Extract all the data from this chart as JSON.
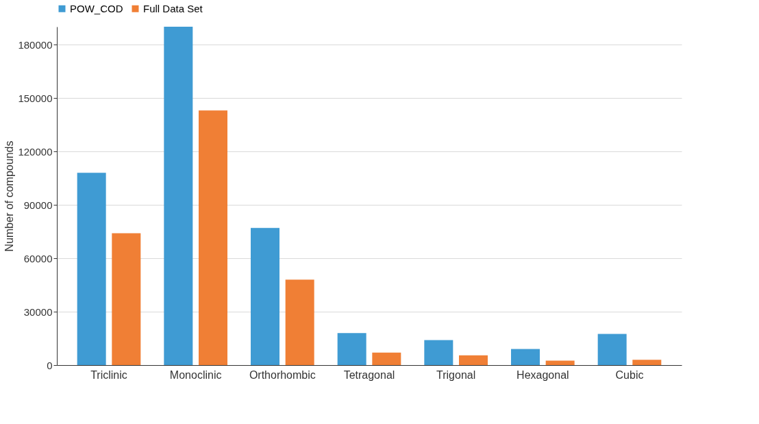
{
  "chart_data": {
    "type": "bar",
    "ylabel": "Number of compounds",
    "categories": [
      "Triclinic",
      "Monoclinic",
      "Orthorhombic",
      "Tetragonal",
      "Trigonal",
      "Hexagonal",
      "Cubic"
    ],
    "series": [
      {
        "name": "POW_COD",
        "color": "#3f9bd3",
        "values": [
          108000,
          190000,
          77000,
          18000,
          14000,
          9000,
          17500
        ]
      },
      {
        "name": "Full Data Set",
        "color": "#f07f35",
        "values": [
          74000,
          143000,
          48000,
          7000,
          5500,
          2500,
          3000
        ]
      }
    ],
    "ylim": [
      0,
      190000
    ],
    "yticks": [
      0,
      30000,
      60000,
      90000,
      120000,
      150000,
      180000
    ],
    "grid": "y",
    "legend": "top"
  }
}
